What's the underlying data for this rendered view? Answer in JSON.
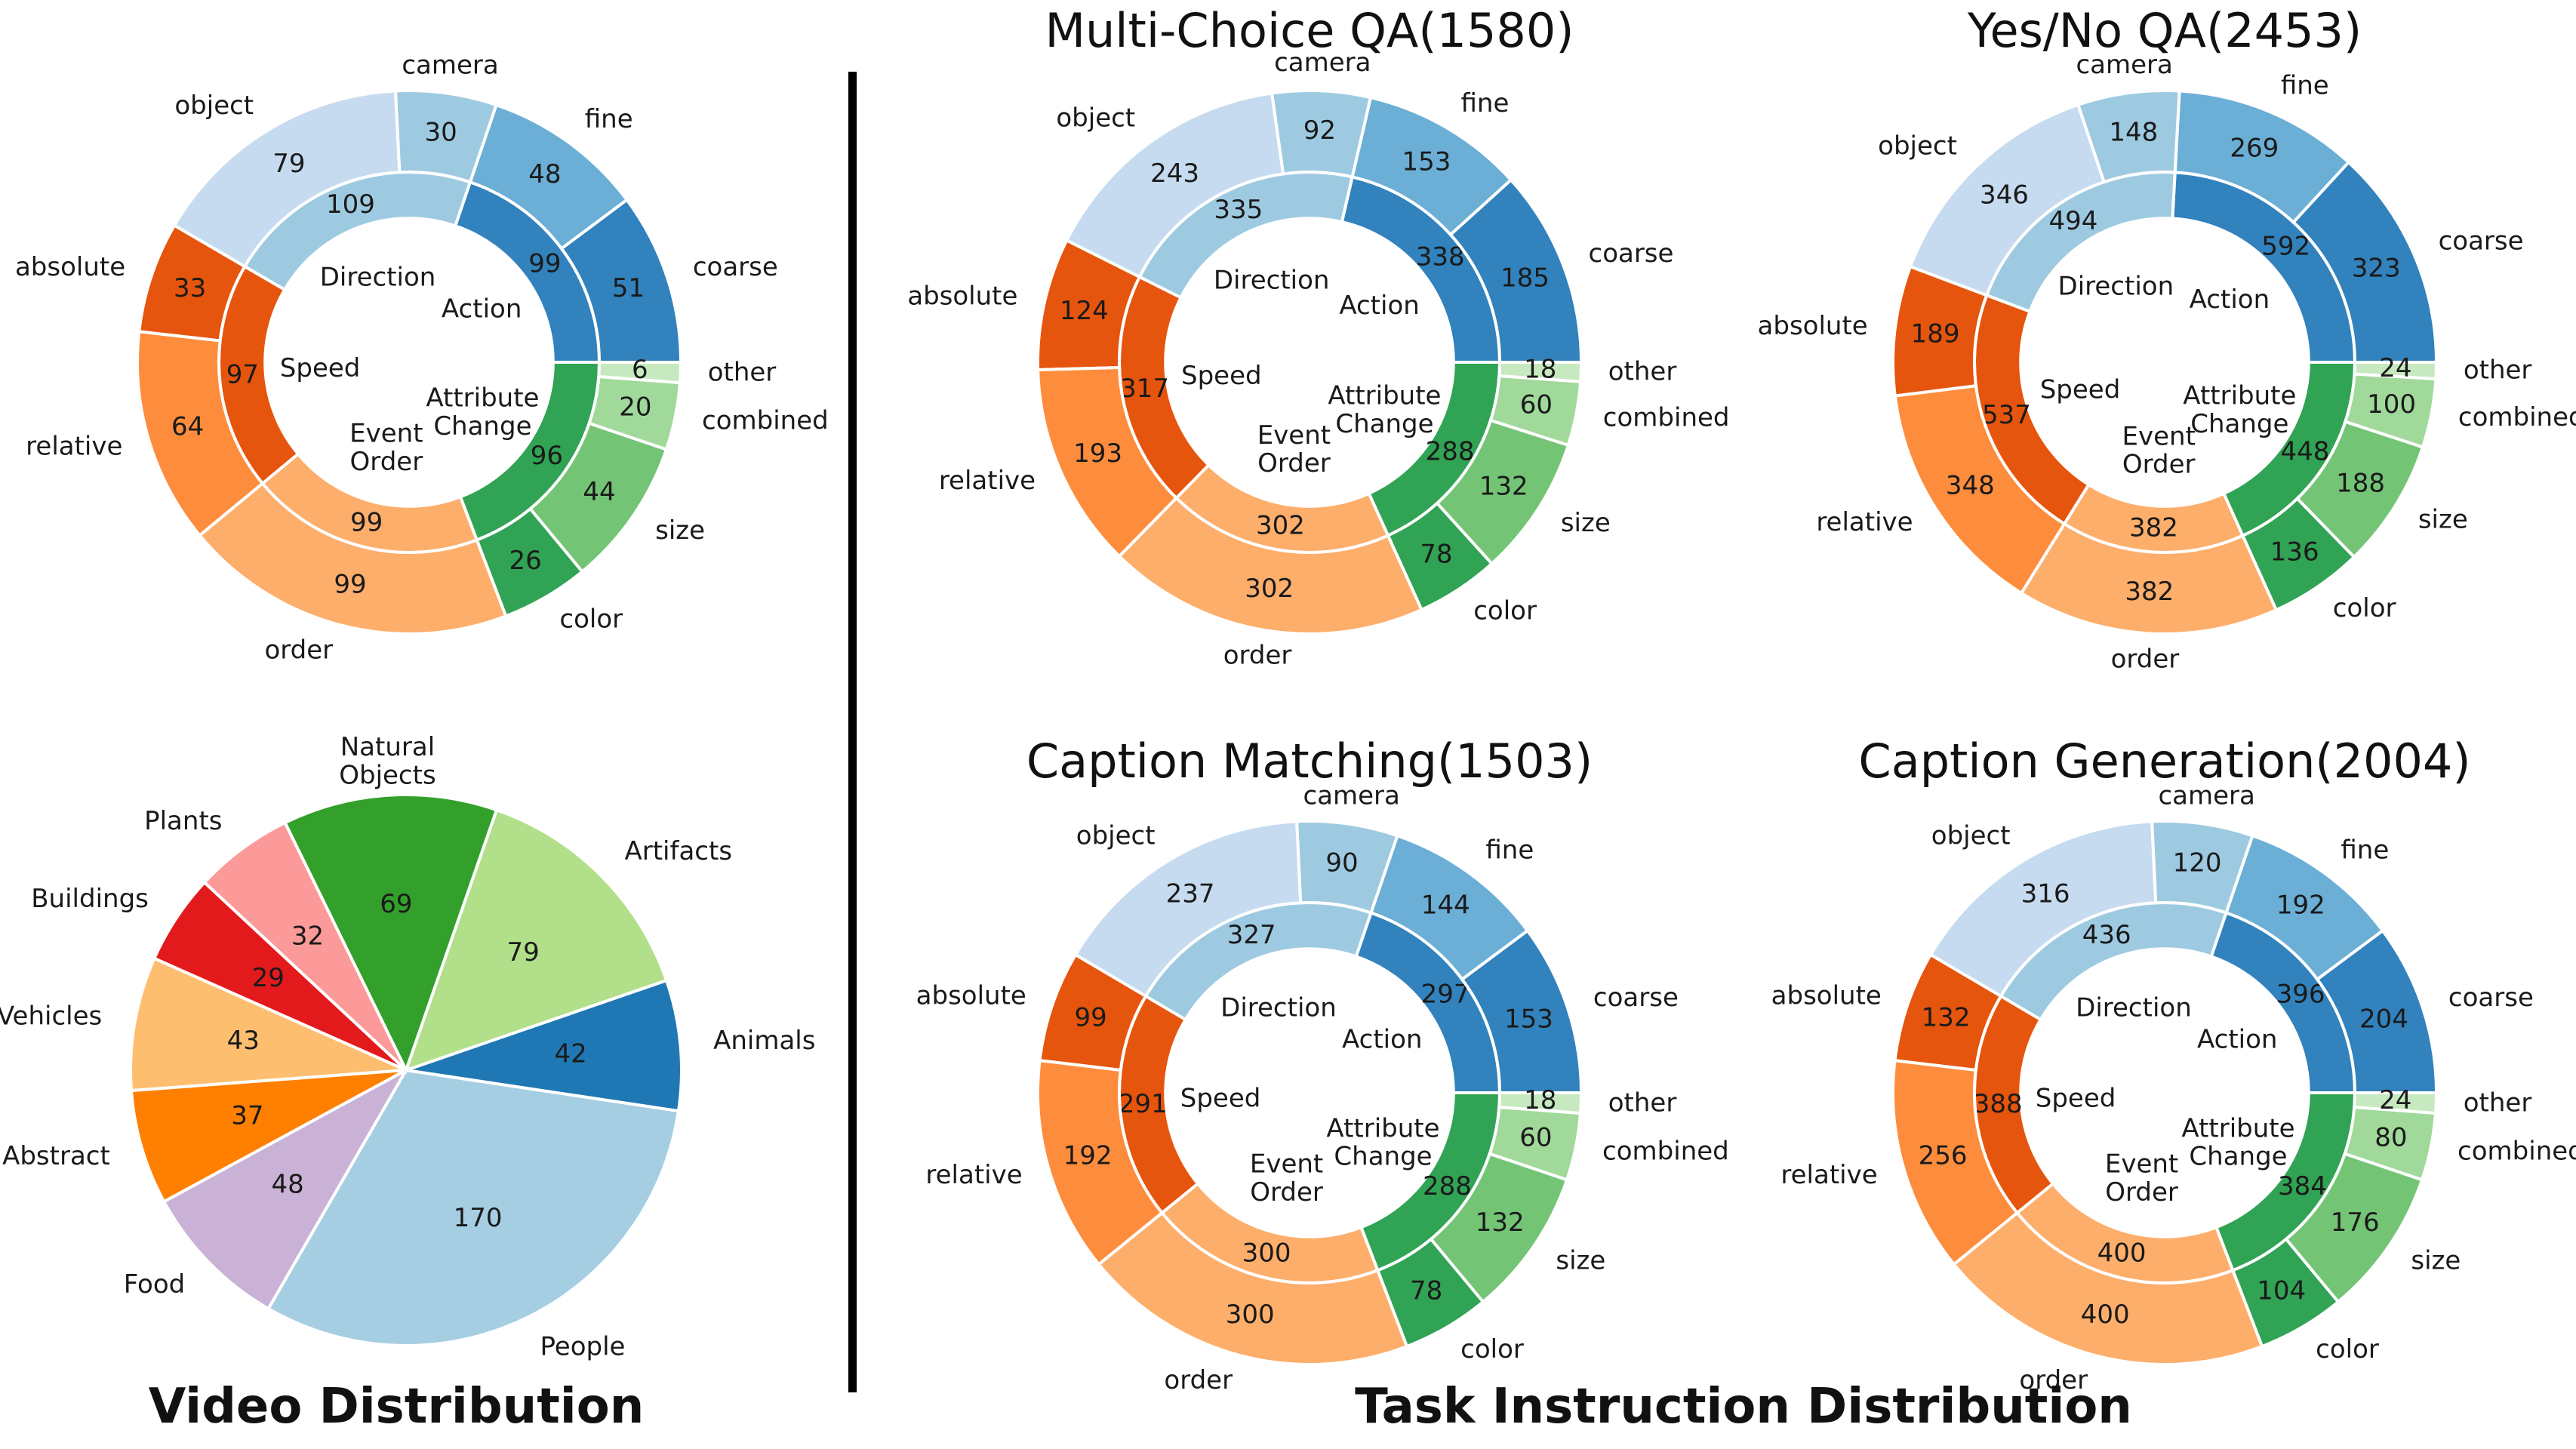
{
  "captions": {
    "left": "Video Distribution",
    "right": "Task Instruction Distribution"
  },
  "colors": {
    "divider": "#000000",
    "action": [
      "#3182bd",
      "#6baed6",
      "#9ecae1"
    ],
    "direction": [
      "#9ecae1",
      "#c6dbef"
    ],
    "speed": [
      "#e6550d",
      "#fd8d3c",
      "#fdae6b"
    ],
    "event": [
      "#fdae6b"
    ],
    "attribute": [
      "#31a354",
      "#74c476",
      "#a1d99b",
      "#c7e9c0"
    ]
  },
  "chart_data": [
    {
      "type": "pie",
      "title": "",
      "slices": [
        {
          "label": "People",
          "value": 170,
          "color": "#a6cee3"
        },
        {
          "label": "Animals",
          "value": 42,
          "color": "#1f78b4"
        },
        {
          "label": "Artifacts",
          "value": 79,
          "color": "#b2df8a"
        },
        {
          "label": "Natural Objects",
          "value": 69,
          "color": "#33a02c"
        },
        {
          "label": "Plants",
          "value": 32,
          "color": "#fb9a99"
        },
        {
          "label": "Buildings",
          "value": 29,
          "color": "#e31a1c"
        },
        {
          "label": "Vehicles",
          "value": 43,
          "color": "#fdbf6f"
        },
        {
          "label": "Abstract",
          "value": 37,
          "color": "#ff7f00"
        },
        {
          "label": "Food",
          "value": 48,
          "color": "#cab2d6"
        }
      ]
    },
    {
      "type": "donut",
      "title": "",
      "inner": [
        {
          "label": "Action",
          "value": 99
        },
        {
          "label": "Direction",
          "value": 109
        },
        {
          "label": "Speed",
          "value": 97
        },
        {
          "label": "Event Order",
          "value": 99
        },
        {
          "label": "Attribute Change",
          "value": 96
        }
      ],
      "outer": [
        {
          "label": "coarse",
          "value": 51
        },
        {
          "label": "fine",
          "value": 48
        },
        {
          "label": "camera",
          "value": 30
        },
        {
          "label": "object",
          "value": 79
        },
        {
          "label": "absolute",
          "value": 33
        },
        {
          "label": "relative",
          "value": 64
        },
        {
          "label": "order",
          "value": 99
        },
        {
          "label": "color",
          "value": 26
        },
        {
          "label": "size",
          "value": 44
        },
        {
          "label": "combined",
          "value": 20
        },
        {
          "label": "other",
          "value": 6
        }
      ]
    },
    {
      "type": "donut",
      "title": "Multi-Choice QA(1580)",
      "inner": [
        {
          "label": "Action",
          "value": 338
        },
        {
          "label": "Direction",
          "value": 335
        },
        {
          "label": "Speed",
          "value": 317
        },
        {
          "label": "Event Order",
          "value": 302
        },
        {
          "label": "Attribute Change",
          "value": 288
        }
      ],
      "outer": [
        {
          "label": "coarse",
          "value": 185
        },
        {
          "label": "fine",
          "value": 153
        },
        {
          "label": "camera",
          "value": 92
        },
        {
          "label": "object",
          "value": 243
        },
        {
          "label": "absolute",
          "value": 124
        },
        {
          "label": "relative",
          "value": 193
        },
        {
          "label": "order",
          "value": 302
        },
        {
          "label": "color",
          "value": 78
        },
        {
          "label": "size",
          "value": 132
        },
        {
          "label": "combined",
          "value": 60
        },
        {
          "label": "other",
          "value": 18
        }
      ]
    },
    {
      "type": "donut",
      "title": "Yes/No QA(2453)",
      "inner": [
        {
          "label": "Action",
          "value": 592
        },
        {
          "label": "Direction",
          "value": 494
        },
        {
          "label": "Speed",
          "value": 537
        },
        {
          "label": "Event Order",
          "value": 382
        },
        {
          "label": "Attribute Change",
          "value": 448
        }
      ],
      "outer": [
        {
          "label": "coarse",
          "value": 323
        },
        {
          "label": "fine",
          "value": 269
        },
        {
          "label": "camera",
          "value": 148
        },
        {
          "label": "object",
          "value": 346
        },
        {
          "label": "absolute",
          "value": 189
        },
        {
          "label": "relative",
          "value": 348
        },
        {
          "label": "order",
          "value": 382
        },
        {
          "label": "color",
          "value": 136
        },
        {
          "label": "size",
          "value": 188
        },
        {
          "label": "combined",
          "value": 100
        },
        {
          "label": "other",
          "value": 24
        }
      ]
    },
    {
      "type": "donut",
      "title": "Caption Matching(1503)",
      "inner": [
        {
          "label": "Action",
          "value": 297
        },
        {
          "label": "Direction",
          "value": 327
        },
        {
          "label": "Speed",
          "value": 291
        },
        {
          "label": "Event Order",
          "value": 300
        },
        {
          "label": "Attribute Change",
          "value": 288
        }
      ],
      "outer": [
        {
          "label": "coarse",
          "value": 153
        },
        {
          "label": "fine",
          "value": 144
        },
        {
          "label": "camera",
          "value": 90
        },
        {
          "label": "object",
          "value": 237
        },
        {
          "label": "absolute",
          "value": 99
        },
        {
          "label": "relative",
          "value": 192
        },
        {
          "label": "order",
          "value": 300
        },
        {
          "label": "color",
          "value": 78
        },
        {
          "label": "size",
          "value": 132
        },
        {
          "label": "combined",
          "value": 60
        },
        {
          "label": "other",
          "value": 18
        }
      ]
    },
    {
      "type": "donut",
      "title": "Caption Generation(2004)",
      "inner": [
        {
          "label": "Action",
          "value": 396
        },
        {
          "label": "Direction",
          "value": 436
        },
        {
          "label": "Speed",
          "value": 388
        },
        {
          "label": "Event Order",
          "value": 400
        },
        {
          "label": "Attribute Change",
          "value": 384
        }
      ],
      "outer": [
        {
          "label": "coarse",
          "value": 204
        },
        {
          "label": "fine",
          "value": 192
        },
        {
          "label": "camera",
          "value": 120
        },
        {
          "label": "object",
          "value": 316
        },
        {
          "label": "absolute",
          "value": 132
        },
        {
          "label": "relative",
          "value": 256
        },
        {
          "label": "order",
          "value": 400
        },
        {
          "label": "color",
          "value": 104
        },
        {
          "label": "size",
          "value": 176
        },
        {
          "label": "combined",
          "value": 80
        },
        {
          "label": "other",
          "value": 24
        }
      ]
    }
  ]
}
